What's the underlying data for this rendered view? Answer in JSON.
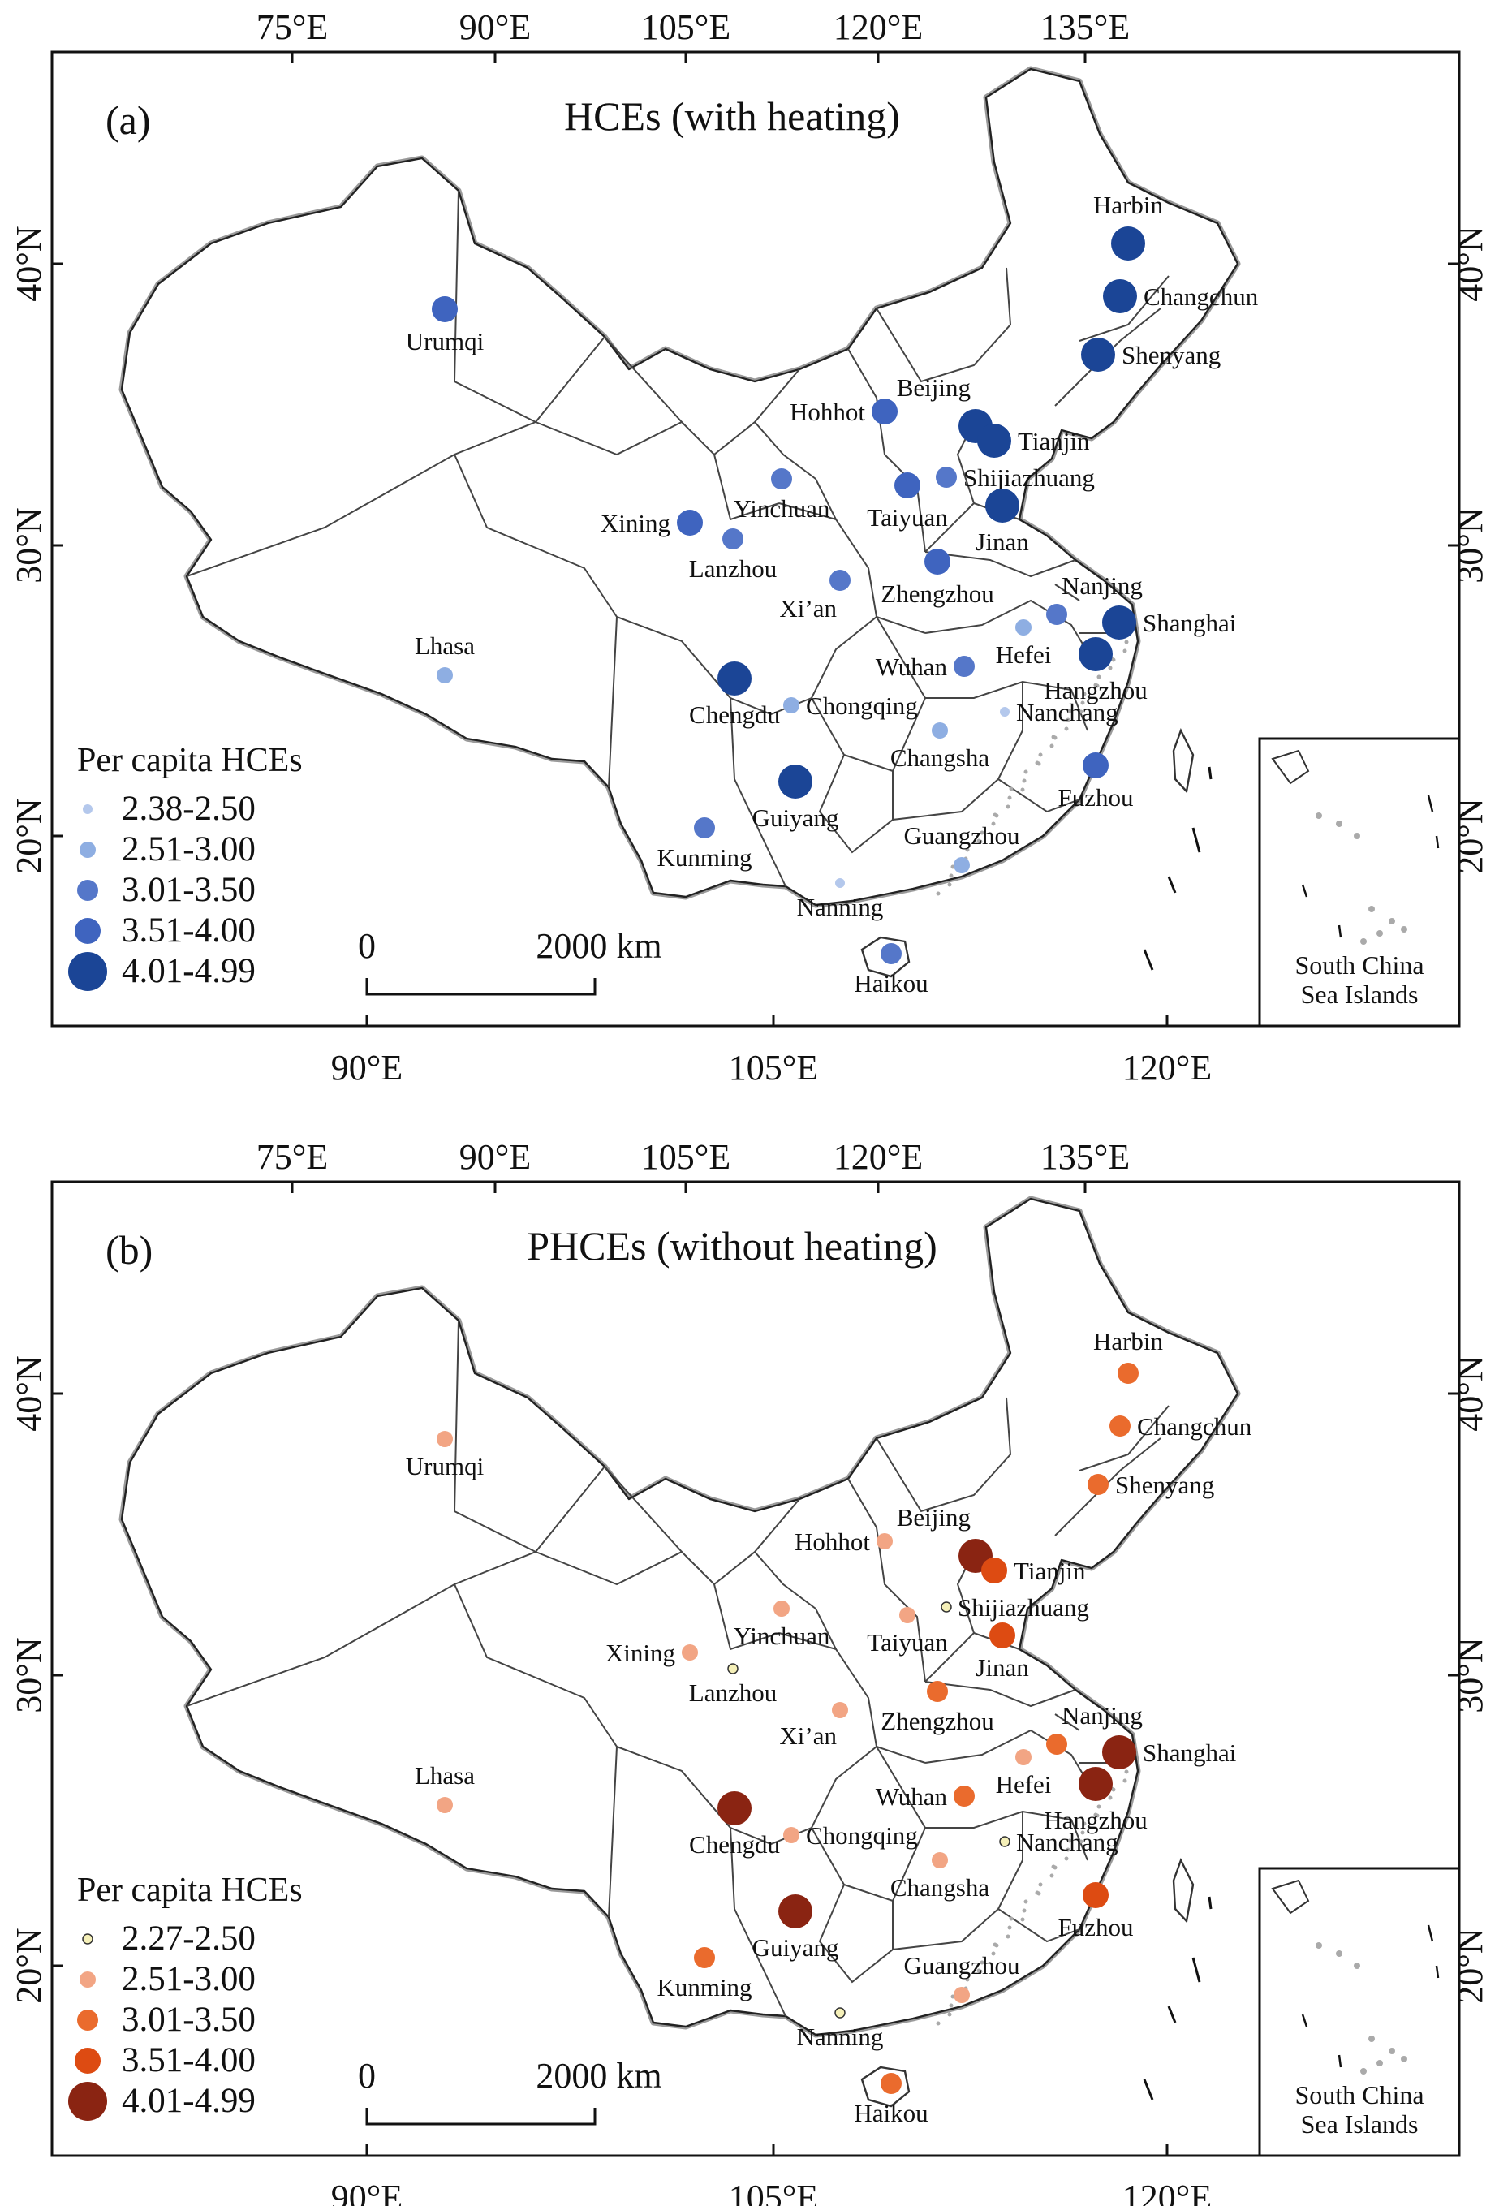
{
  "axes": {
    "top_lon": [
      "75°E",
      "90°E",
      "105°E",
      "120°E",
      "135°E"
    ],
    "bottom_lon": [
      "90°E",
      "105°E",
      "120°E"
    ],
    "lat": [
      "40°N",
      "30°N",
      "20°N"
    ]
  },
  "scale_bar": {
    "start": "0",
    "end": "2000 km"
  },
  "inset_label": [
    "South China",
    "Sea Islands"
  ],
  "classes": [
    "c1",
    "c2",
    "c3",
    "c4",
    "c5"
  ],
  "panels": [
    {
      "id": "a",
      "label": "(a)",
      "title": "HCEs (with heating)",
      "legend_title": "Per capita HCEs",
      "legend_labels": [
        "2.38-2.50",
        "2.51-3.00",
        "3.01-3.50",
        "3.51-4.00",
        "4.01-4.99"
      ],
      "colors": [
        "#b4c8ec",
        "#8eaee2",
        "#5577c9",
        "#3f64bf",
        "#1b4596"
      ],
      "cities": [
        {
          "name": "Harbin",
          "cls": 5
        },
        {
          "name": "Changchun",
          "cls": 5
        },
        {
          "name": "Shenyang",
          "cls": 5
        },
        {
          "name": "Urumqi",
          "cls": 4
        },
        {
          "name": "Beijing",
          "cls": 5
        },
        {
          "name": "Tianjin",
          "cls": 5
        },
        {
          "name": "Hohhot",
          "cls": 4
        },
        {
          "name": "Shijiazhuang",
          "cls": 3
        },
        {
          "name": "Yinchuan",
          "cls": 3
        },
        {
          "name": "Taiyuan",
          "cls": 4
        },
        {
          "name": "Jinan",
          "cls": 5
        },
        {
          "name": "Xining",
          "cls": 4
        },
        {
          "name": "Lanzhou",
          "cls": 3
        },
        {
          "name": "Zhengzhou",
          "cls": 4
        },
        {
          "name": "Xi’an",
          "cls": 3
        },
        {
          "name": "Nanjing",
          "cls": 3
        },
        {
          "name": "Shanghai",
          "cls": 5
        },
        {
          "name": "Lhasa",
          "cls": 2
        },
        {
          "name": "Hefei",
          "cls": 2
        },
        {
          "name": "Wuhan",
          "cls": 3
        },
        {
          "name": "Hangzhou",
          "cls": 5
        },
        {
          "name": "Chengdu",
          "cls": 5
        },
        {
          "name": "Chongqing",
          "cls": 2
        },
        {
          "name": "Nanchang",
          "cls": 1
        },
        {
          "name": "Changsha",
          "cls": 2
        },
        {
          "name": "Guiyang",
          "cls": 5
        },
        {
          "name": "Fuzhou",
          "cls": 4
        },
        {
          "name": "Kunming",
          "cls": 3
        },
        {
          "name": "Guangzhou",
          "cls": 2
        },
        {
          "name": "Nanning",
          "cls": 1
        },
        {
          "name": "Haikou",
          "cls": 3
        }
      ]
    },
    {
      "id": "b",
      "label": "(b)",
      "title": "PHCEs (without heating)",
      "legend_title": "Per capita HCEs",
      "legend_labels": [
        "2.27-2.50",
        "2.51-3.00",
        "3.01-3.50",
        "3.51-4.00",
        "4.01-4.99"
      ],
      "colors": [
        "#f5f0b8",
        "#f2a584",
        "#ea6b2d",
        "#dd4b12",
        "#8a2412"
      ],
      "cities": [
        {
          "name": "Harbin",
          "cls": 3
        },
        {
          "name": "Changchun",
          "cls": 3
        },
        {
          "name": "Shenyang",
          "cls": 3
        },
        {
          "name": "Urumqi",
          "cls": 2
        },
        {
          "name": "Beijing",
          "cls": 5
        },
        {
          "name": "Tianjin",
          "cls": 4
        },
        {
          "name": "Hohhot",
          "cls": 2
        },
        {
          "name": "Shijiazhuang",
          "cls": 1
        },
        {
          "name": "Yinchuan",
          "cls": 2
        },
        {
          "name": "Taiyuan",
          "cls": 2
        },
        {
          "name": "Jinan",
          "cls": 4
        },
        {
          "name": "Xining",
          "cls": 2
        },
        {
          "name": "Lanzhou",
          "cls": 1
        },
        {
          "name": "Zhengzhou",
          "cls": 3
        },
        {
          "name": "Xi’an",
          "cls": 2
        },
        {
          "name": "Nanjing",
          "cls": 3
        },
        {
          "name": "Shanghai",
          "cls": 5
        },
        {
          "name": "Lhasa",
          "cls": 2
        },
        {
          "name": "Hefei",
          "cls": 2
        },
        {
          "name": "Wuhan",
          "cls": 3
        },
        {
          "name": "Hangzhou",
          "cls": 5
        },
        {
          "name": "Chengdu",
          "cls": 5
        },
        {
          "name": "Chongqing",
          "cls": 2
        },
        {
          "name": "Nanchang",
          "cls": 1
        },
        {
          "name": "Changsha",
          "cls": 2
        },
        {
          "name": "Guiyang",
          "cls": 5
        },
        {
          "name": "Fuzhou",
          "cls": 4
        },
        {
          "name": "Kunming",
          "cls": 3
        },
        {
          "name": "Guangzhou",
          "cls": 2
        },
        {
          "name": "Nanning",
          "cls": 1
        },
        {
          "name": "Haikou",
          "cls": 3
        }
      ]
    }
  ]
}
